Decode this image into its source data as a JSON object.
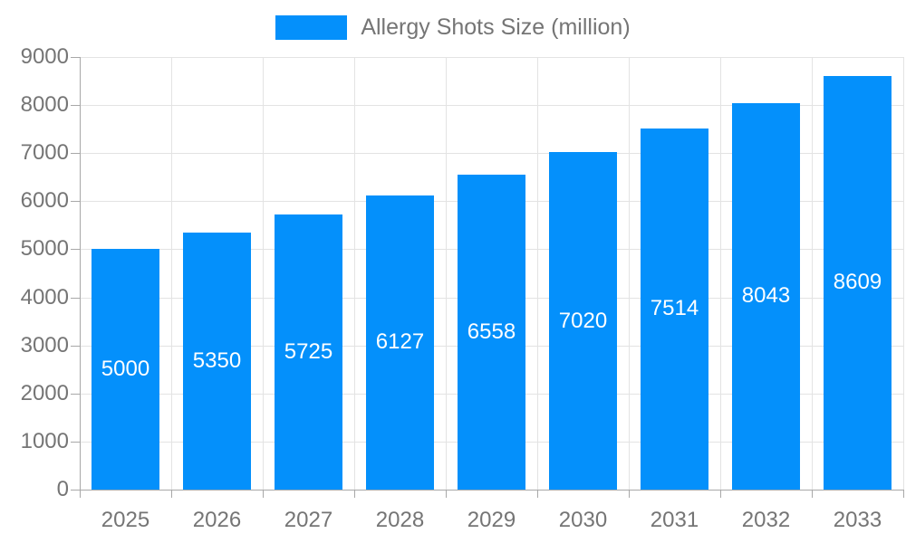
{
  "legend": {
    "label": "Allergy Shots Size (million)"
  },
  "colors": {
    "bar": "#0490FB",
    "bar_label": "#FFFFFF",
    "axis_label": "#757575",
    "grid_line": "#E3E3E3",
    "axis_line": "#A8A8A8",
    "background": "#FFFFFF"
  },
  "chart_data": {
    "type": "bar",
    "title": "",
    "categories": [
      "2025",
      "2026",
      "2027",
      "2028",
      "2029",
      "2030",
      "2031",
      "2032",
      "2033"
    ],
    "series": [
      {
        "name": "Allergy Shots Size (million)",
        "values": [
          5000,
          5350,
          5725,
          6127,
          6558,
          7020,
          7514,
          8043,
          8609
        ]
      }
    ],
    "yticks": [
      0,
      1000,
      2000,
      3000,
      4000,
      5000,
      6000,
      7000,
      8000,
      9000
    ],
    "ylim": [
      0,
      9000
    ],
    "xlabel": "",
    "ylabel": "",
    "grid": true,
    "legend_position": "top",
    "value_labels": "inside-center",
    "bar_width_ratio": 0.75
  }
}
